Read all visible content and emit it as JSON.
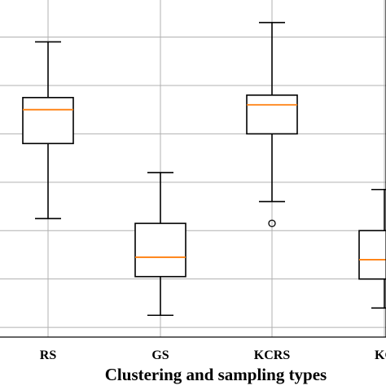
{
  "chart_data": {
    "type": "boxplot",
    "title": "",
    "xlabel": "Clustering and sampling types",
    "ylabel": "",
    "categories": [
      "RS",
      "GS",
      "KCRS",
      "KC"
    ],
    "boxes": [
      {
        "category": "RS",
        "whislo": 2.25,
        "q1": 3.8,
        "med": 4.5,
        "q3": 4.75,
        "whishi": 5.9,
        "fliers": []
      },
      {
        "category": "GS",
        "whislo": 0.25,
        "q1": 1.05,
        "med": 1.45,
        "q3": 2.15,
        "whishi": 3.2,
        "fliers": []
      },
      {
        "category": "KCRS",
        "whislo": 2.6,
        "q1": 4.0,
        "med": 4.6,
        "q3": 4.8,
        "whishi": 6.3,
        "fliers": [
          2.15
        ]
      },
      {
        "category": "KC",
        "whislo": 0.4,
        "q1": 1.0,
        "med": 1.4,
        "q3": 2.0,
        "whishi": 2.85,
        "fliers": []
      }
    ],
    "ylim": [
      -0.2,
      6.8
    ],
    "y_gridlines": [
      0,
      1,
      2,
      3,
      4,
      5,
      6
    ],
    "grid": true,
    "legend": "none",
    "colors": {
      "box": "#000000",
      "median": "#ff7f0e",
      "grid": "#b0b0b0",
      "flier": "#000000"
    }
  }
}
